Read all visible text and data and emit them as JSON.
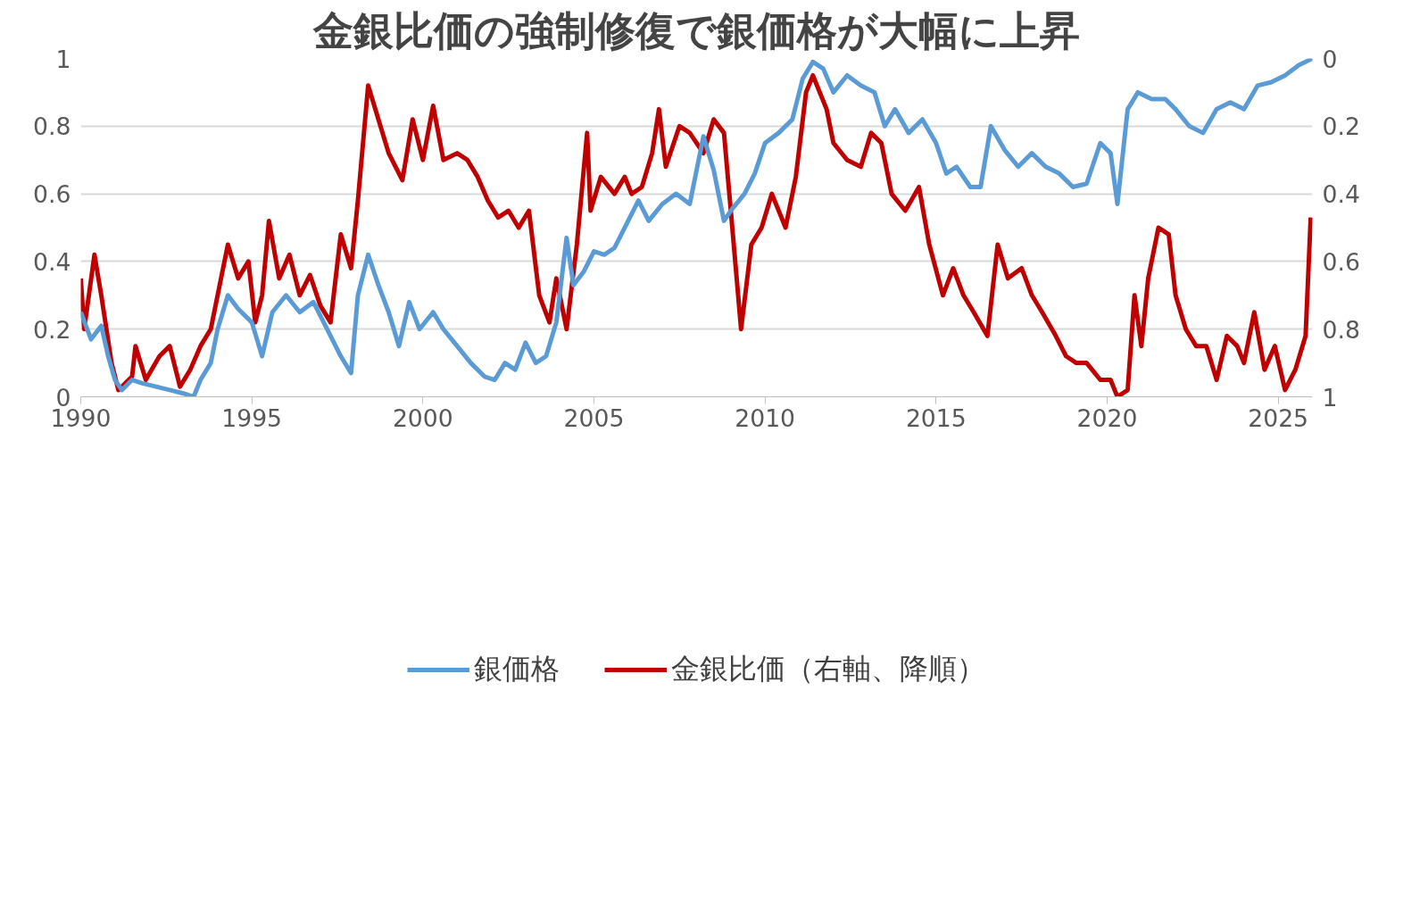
{
  "chart_data": {
    "type": "line",
    "title": "金銀比価の強制修復で銀価格が大幅に上昇",
    "xlim": [
      1990,
      2026
    ],
    "xticks": [
      1990,
      1995,
      2000,
      2005,
      2010,
      2015,
      2020,
      2025
    ],
    "ylim": [
      0,
      1
    ],
    "yticks": [
      0,
      0.2,
      0.4,
      0.6,
      0.8,
      1
    ],
    "y2lim": [
      1,
      0
    ],
    "y2ticks": [
      0,
      0.2,
      0.4,
      0.6,
      0.8,
      1
    ],
    "grid": "y",
    "legend": "bottom",
    "marker": "none",
    "line_style": "solid",
    "series": [
      {
        "name": "銀価格",
        "color": "#5b9bd5",
        "x": [
          1990.0,
          1990.3,
          1990.6,
          1990.8,
          1991.0,
          1991.2,
          1991.5,
          1991.8,
          1992.2,
          1992.6,
          1993.0,
          1993.3,
          1993.5,
          1993.8,
          1994.0,
          1994.3,
          1994.6,
          1995.0,
          1995.3,
          1995.6,
          1996.0,
          1996.4,
          1996.8,
          1997.2,
          1997.6,
          1997.9,
          1998.1,
          1998.4,
          1998.7,
          1999.0,
          1999.3,
          1999.6,
          1999.9,
          2000.3,
          2000.6,
          2001.0,
          2001.4,
          2001.8,
          2002.1,
          2002.4,
          2002.7,
          2003.0,
          2003.3,
          2003.6,
          2003.9,
          2004.2,
          2004.4,
          2004.7,
          2005.0,
          2005.3,
          2005.6,
          2006.0,
          2006.3,
          2006.6,
          2007.0,
          2007.4,
          2007.8,
          2008.2,
          2008.5,
          2008.8,
          2009.0,
          2009.4,
          2009.7,
          2010.0,
          2010.4,
          2010.8,
          2011.1,
          2011.4,
          2011.7,
          2012.0,
          2012.4,
          2012.8,
          2013.2,
          2013.5,
          2013.8,
          2014.2,
          2014.6,
          2015.0,
          2015.3,
          2015.6,
          2016.0,
          2016.3,
          2016.6,
          2017.0,
          2017.4,
          2017.8,
          2018.2,
          2018.6,
          2019.0,
          2019.4,
          2019.8,
          2020.1,
          2020.3,
          2020.6,
          2020.9,
          2021.3,
          2021.7,
          2022.0,
          2022.4,
          2022.8,
          2023.2,
          2023.6,
          2024.0,
          2024.4,
          2024.8,
          2025.2,
          2025.6,
          2026.0
        ],
        "values": [
          0.25,
          0.17,
          0.21,
          0.12,
          0.05,
          0.02,
          0.05,
          0.04,
          0.03,
          0.02,
          0.01,
          0.0,
          0.05,
          0.1,
          0.2,
          0.3,
          0.26,
          0.22,
          0.12,
          0.25,
          0.3,
          0.25,
          0.28,
          0.2,
          0.12,
          0.07,
          0.3,
          0.42,
          0.33,
          0.25,
          0.15,
          0.28,
          0.2,
          0.25,
          0.2,
          0.15,
          0.1,
          0.06,
          0.05,
          0.1,
          0.08,
          0.16,
          0.1,
          0.12,
          0.22,
          0.47,
          0.33,
          0.37,
          0.43,
          0.42,
          0.44,
          0.52,
          0.58,
          0.52,
          0.57,
          0.6,
          0.57,
          0.77,
          0.67,
          0.52,
          0.55,
          0.6,
          0.66,
          0.75,
          0.78,
          0.82,
          0.94,
          0.99,
          0.97,
          0.9,
          0.95,
          0.92,
          0.9,
          0.8,
          0.85,
          0.78,
          0.82,
          0.75,
          0.66,
          0.68,
          0.62,
          0.62,
          0.8,
          0.73,
          0.68,
          0.72,
          0.68,
          0.66,
          0.62,
          0.63,
          0.75,
          0.72,
          0.57,
          0.85,
          0.9,
          0.88,
          0.88,
          0.85,
          0.8,
          0.78,
          0.85,
          0.87,
          0.85,
          0.92,
          0.93,
          0.95,
          0.98,
          1.0
        ]
      },
      {
        "name": "金銀比価（右軸、降順）",
        "color": "#c00000",
        "axis": "y2",
        "x": [
          1990.0,
          1990.1,
          1990.4,
          1990.6,
          1990.9,
          1991.1,
          1991.5,
          1991.6,
          1991.9,
          1992.3,
          1992.6,
          1992.9,
          1993.2,
          1993.5,
          1993.8,
          1994.0,
          1994.3,
          1994.6,
          1994.9,
          1995.1,
          1995.3,
          1995.5,
          1995.8,
          1996.1,
          1996.4,
          1996.7,
          1997.0,
          1997.3,
          1997.6,
          1997.9,
          1998.1,
          1998.4,
          1998.7,
          1999.0,
          1999.4,
          1999.7,
          2000.0,
          2000.3,
          2000.6,
          2001.0,
          2001.3,
          2001.6,
          2001.9,
          2002.2,
          2002.5,
          2002.8,
          2003.1,
          2003.4,
          2003.7,
          2003.9,
          2004.2,
          2004.5,
          2004.8,
          2004.9,
          2005.2,
          2005.6,
          2005.9,
          2006.1,
          2006.4,
          2006.7,
          2006.9,
          2007.1,
          2007.5,
          2007.8,
          2008.2,
          2008.5,
          2008.8,
          2009.0,
          2009.3,
          2009.6,
          2009.9,
          2010.2,
          2010.6,
          2010.9,
          2011.2,
          2011.4,
          2011.8,
          2012.0,
          2012.4,
          2012.8,
          2013.1,
          2013.4,
          2013.7,
          2014.1,
          2014.5,
          2014.8,
          2015.2,
          2015.5,
          2015.8,
          2016.1,
          2016.5,
          2016.8,
          2017.1,
          2017.5,
          2017.8,
          2018.1,
          2018.5,
          2018.8,
          2019.1,
          2019.4,
          2019.8,
          2020.1,
          2020.3,
          2020.6,
          2020.8,
          2021.0,
          2021.2,
          2021.5,
          2021.8,
          2022.0,
          2022.3,
          2022.6,
          2022.9,
          2023.2,
          2023.5,
          2023.8,
          2024.0,
          2024.3,
          2024.6,
          2024.9,
          2025.2,
          2025.5,
          2025.8,
          2025.95
        ],
        "values": [
          0.65,
          0.8,
          0.58,
          0.7,
          0.9,
          0.98,
          0.94,
          0.85,
          0.95,
          0.88,
          0.85,
          0.97,
          0.92,
          0.85,
          0.8,
          0.7,
          0.55,
          0.65,
          0.6,
          0.78,
          0.7,
          0.48,
          0.65,
          0.58,
          0.7,
          0.64,
          0.73,
          0.78,
          0.52,
          0.62,
          0.42,
          0.08,
          0.18,
          0.28,
          0.36,
          0.18,
          0.3,
          0.14,
          0.3,
          0.28,
          0.3,
          0.35,
          0.42,
          0.47,
          0.45,
          0.5,
          0.45,
          0.7,
          0.78,
          0.65,
          0.8,
          0.55,
          0.22,
          0.45,
          0.35,
          0.4,
          0.35,
          0.4,
          0.38,
          0.28,
          0.15,
          0.32,
          0.2,
          0.22,
          0.28,
          0.18,
          0.22,
          0.45,
          0.8,
          0.55,
          0.5,
          0.4,
          0.5,
          0.35,
          0.1,
          0.05,
          0.15,
          0.25,
          0.3,
          0.32,
          0.22,
          0.25,
          0.4,
          0.45,
          0.38,
          0.55,
          0.7,
          0.62,
          0.7,
          0.75,
          0.82,
          0.55,
          0.65,
          0.62,
          0.7,
          0.75,
          0.82,
          0.88,
          0.9,
          0.9,
          0.95,
          0.95,
          1.0,
          0.98,
          0.7,
          0.85,
          0.65,
          0.5,
          0.52,
          0.7,
          0.8,
          0.85,
          0.85,
          0.95,
          0.82,
          0.85,
          0.9,
          0.75,
          0.92,
          0.85,
          0.98,
          0.92,
          0.82,
          0.47
        ]
      }
    ]
  }
}
